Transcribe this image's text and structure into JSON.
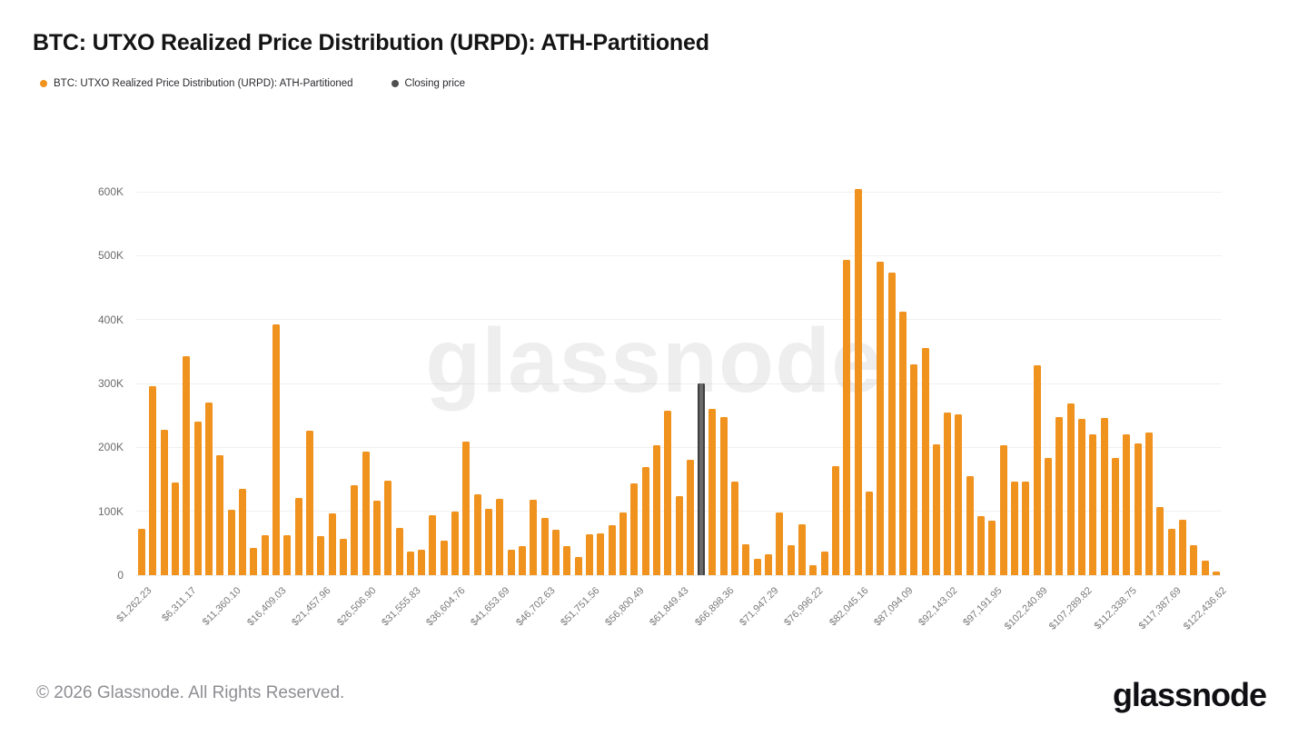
{
  "title": "BTC: UTXO Realized Price Distribution (URPD): ATH-Partitioned",
  "watermark": "glassnode",
  "legend": {
    "items": [
      {
        "label": "BTC: UTXO Realized Price Distribution (URPD): ATH-Partitioned",
        "color": "#F0921E"
      },
      {
        "label": "Closing price",
        "color": "#4f4f4f"
      }
    ]
  },
  "footer": {
    "copyright": "© 2026 Glassnode. All Rights Reserved.",
    "brand": "glassnode"
  },
  "chart_data": {
    "type": "bar",
    "title": "BTC: UTXO Realized Price Distribution (URPD): ATH-Partitioned",
    "xlabel": "",
    "ylabel": "",
    "y_unit": "K (thousand BTC)",
    "ylim_k": [
      0,
      620
    ],
    "grid": "horizontal",
    "legend_position": "top-left",
    "y_ticks_k": [
      0,
      100,
      200,
      300,
      400,
      500,
      600
    ],
    "y_tick_labels": [
      "0",
      "100K",
      "200K",
      "300K",
      "400K",
      "500K",
      "600K"
    ],
    "x_tick_every": 4,
    "x_tick_labels": [
      "$1,262.23",
      "$6,311.17",
      "$11,360.10",
      "$16,409.03",
      "$21,457.96",
      "$26,506.90",
      "$31,555.83",
      "$36,604.76",
      "$41,653.69",
      "$46,702.63",
      "$51,751.56",
      "$56,800.49",
      "$61,849.43",
      "$66,898.36",
      "$71,947.29",
      "$76,996.22",
      "$82,045.16",
      "$87,094.09",
      "$92,143.02",
      "$97,191.95",
      "$102,240.89",
      "$107,289.82",
      "$112,338.75",
      "$117,387.69",
      "$122,436.62"
    ],
    "series": [
      {
        "name": "BTC: UTXO Realized Price Distribution (URPD): ATH-Partitioned",
        "color": "#F0921E",
        "values_k": [
          72,
          296,
          228,
          145,
          342,
          240,
          270,
          187,
          103,
          135,
          43,
          63,
          392,
          62,
          121,
          226,
          61,
          97,
          57,
          141,
          194,
          117,
          148,
          74,
          37,
          40,
          94,
          54,
          99,
          209,
          126,
          104,
          120,
          40,
          45,
          118,
          90,
          71,
          45,
          28,
          64,
          66,
          78,
          98,
          144,
          169,
          204,
          257,
          123,
          180,
          null,
          260,
          248,
          146,
          48,
          26,
          33,
          98,
          47,
          80,
          15,
          37,
          170,
          494,
          604,
          131,
          490,
          473,
          413,
          330,
          355,
          205,
          254,
          252,
          155,
          93,
          85,
          204,
          146,
          146,
          329,
          184,
          248,
          269,
          245,
          221,
          246,
          183,
          220,
          206,
          223,
          106,
          73,
          87,
          47,
          23,
          6
        ]
      },
      {
        "name": "Closing price",
        "color": "#6a6a6a",
        "edge_color": "#3e3e3e",
        "slot_index": 50,
        "value_k": 300
      }
    ]
  }
}
